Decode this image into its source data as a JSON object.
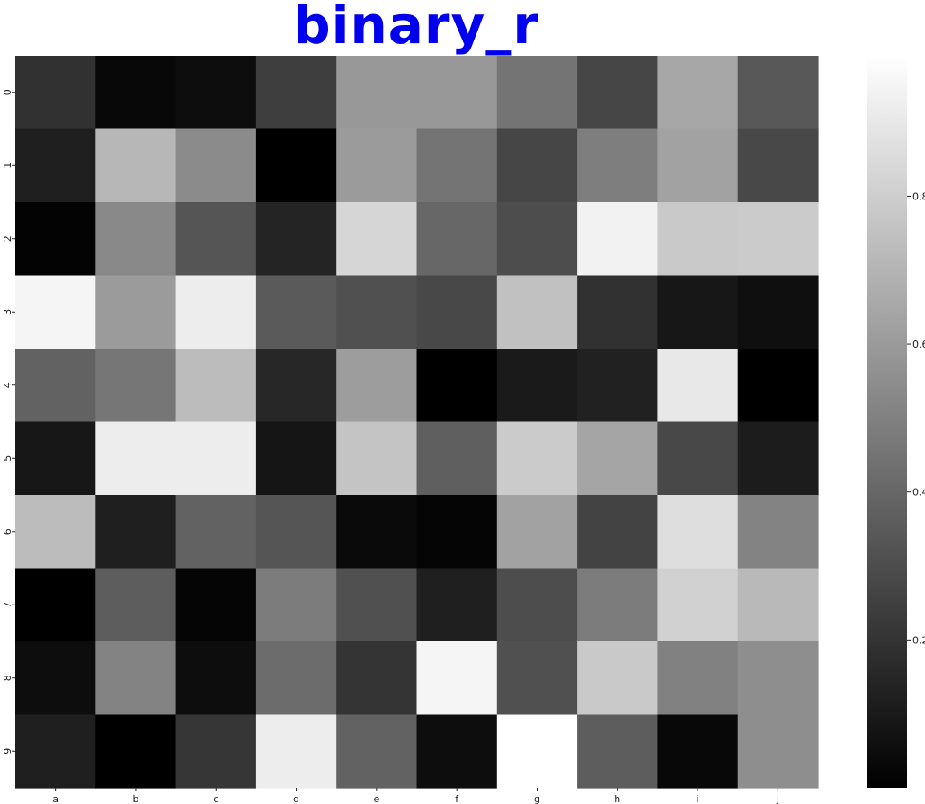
{
  "chart_data": {
    "type": "heatmap",
    "title": "binary_r",
    "colormap": "binary_r",
    "x_categories": [
      "a",
      "b",
      "c",
      "d",
      "e",
      "f",
      "g",
      "h",
      "i",
      "j"
    ],
    "y_categories": [
      "0",
      "1",
      "2",
      "3",
      "4",
      "5",
      "6",
      "7",
      "8",
      "9"
    ],
    "values": [
      [
        0.19,
        0.03,
        0.05,
        0.24,
        0.59,
        0.59,
        0.45,
        0.27,
        0.65,
        0.34
      ],
      [
        0.12,
        0.71,
        0.54,
        0.0,
        0.6,
        0.45,
        0.27,
        0.49,
        0.63,
        0.28
      ],
      [
        0.01,
        0.53,
        0.33,
        0.14,
        0.83,
        0.4,
        0.3,
        0.94,
        0.78,
        0.79
      ],
      [
        0.95,
        0.6,
        0.92,
        0.35,
        0.31,
        0.28,
        0.75,
        0.19,
        0.09,
        0.06
      ],
      [
        0.38,
        0.46,
        0.73,
        0.15,
        0.61,
        0.0,
        0.1,
        0.13,
        0.9,
        0.0
      ],
      [
        0.09,
        0.92,
        0.92,
        0.08,
        0.76,
        0.37,
        0.79,
        0.64,
        0.28,
        0.11
      ],
      [
        0.73,
        0.12,
        0.38,
        0.33,
        0.04,
        0.02,
        0.63,
        0.26,
        0.86,
        0.51
      ],
      [
        0.0,
        0.36,
        0.02,
        0.48,
        0.31,
        0.12,
        0.3,
        0.48,
        0.81,
        0.72
      ],
      [
        0.05,
        0.51,
        0.05,
        0.42,
        0.2,
        0.95,
        0.31,
        0.78,
        0.5,
        0.55
      ],
      [
        0.12,
        0.0,
        0.21,
        0.92,
        0.38,
        0.05,
        0.99,
        0.36,
        0.03,
        0.55
      ]
    ],
    "vmin": 0.0,
    "vmax": 0.99,
    "colorbar": {
      "ticks": [
        0.2,
        0.4,
        0.6,
        0.8
      ],
      "tick_labels": [
        "0.2",
        "0.4",
        "0.6",
        "0.8"
      ]
    },
    "grid": false,
    "legend": "colorbar-right"
  }
}
